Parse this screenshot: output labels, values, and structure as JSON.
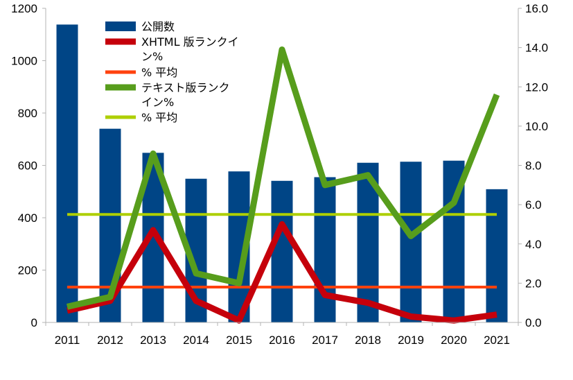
{
  "chart_data": {
    "type": "bar+line",
    "categories": [
      "2011",
      "2012",
      "2013",
      "2014",
      "2015",
      "2016",
      "2017",
      "2018",
      "2019",
      "2020",
      "2021"
    ],
    "left_axis": {
      "ylim": [
        0,
        1200
      ],
      "ticks": [
        "0",
        "200",
        "400",
        "600",
        "800",
        "1000",
        "1200"
      ]
    },
    "right_axis": {
      "ylim": [
        0,
        16
      ],
      "ticks": [
        "0.0",
        "2.0",
        "4.0",
        "6.0",
        "8.0",
        "10.0",
        "12.0",
        "14.0",
        "16.0"
      ]
    },
    "grid": false,
    "legend_position": "top-left inside plot",
    "series": [
      {
        "name": "公開数",
        "kind": "bar",
        "axis": "left",
        "color": "#004586",
        "values": [
          1138,
          740,
          648,
          549,
          577,
          541,
          555,
          610,
          614,
          618,
          509
        ]
      },
      {
        "name": "XHTML 版ランクイン%",
        "kind": "line",
        "axis": "right",
        "color": "#c5000b",
        "values": [
          0.6,
          1.1,
          4.7,
          1.1,
          0.1,
          5.0,
          1.4,
          1.0,
          0.3,
          0.1,
          0.4
        ]
      },
      {
        "name": "% 平均",
        "kind": "line",
        "axis": "right",
        "color": "#ff420e",
        "values": [
          1.8,
          1.8,
          1.8,
          1.8,
          1.8,
          1.8,
          1.8,
          1.8,
          1.8,
          1.8,
          1.8
        ]
      },
      {
        "name": "テキスト版ランクイン%",
        "kind": "line",
        "axis": "right",
        "color": "#579d1c",
        "values": [
          0.8,
          1.3,
          8.6,
          2.5,
          2.0,
          13.9,
          7.0,
          7.5,
          4.4,
          6.1,
          11.6
        ]
      },
      {
        "name": "% 平均",
        "kind": "line",
        "axis": "right",
        "color": "#aecf00",
        "values": [
          5.5,
          5.5,
          5.5,
          5.5,
          5.5,
          5.5,
          5.5,
          5.5,
          5.5,
          5.5,
          5.5
        ]
      }
    ],
    "legend": [
      {
        "lines": [
          "公開数"
        ]
      },
      {
        "lines": [
          "XHTML 版ランクイ",
          "ン%"
        ]
      },
      {
        "lines": [
          "% 平均"
        ]
      },
      {
        "lines": [
          "テキスト版ランク",
          "イン%"
        ]
      },
      {
        "lines": [
          "% 平均"
        ]
      }
    ]
  }
}
